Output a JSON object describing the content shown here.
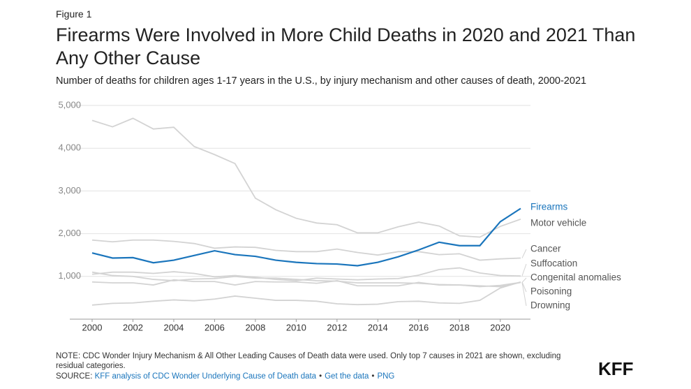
{
  "chart_data": {
    "type": "line",
    "figure_label": "Figure 1",
    "title": "Firearms Were Involved in More Child Deaths in 2020 and 2021 Than Any Other Cause",
    "subtitle": "Number of deaths for children ages 1-17 years in the U.S., by injury mechanism and other causes of death, 2000-2021",
    "x": [
      2000,
      2001,
      2002,
      2003,
      2004,
      2005,
      2006,
      2007,
      2008,
      2009,
      2010,
      2011,
      2012,
      2013,
      2014,
      2015,
      2016,
      2017,
      2018,
      2019,
      2020,
      2021
    ],
    "xlim": [
      2000,
      2021
    ],
    "xticks": [
      2000,
      2002,
      2004,
      2006,
      2008,
      2010,
      2012,
      2014,
      2016,
      2018,
      2020
    ],
    "ylim": [
      0,
      5000
    ],
    "yticks": [
      {
        "value": 1000,
        "label": "1,000"
      },
      {
        "value": 2000,
        "label": "2,000"
      },
      {
        "value": 3000,
        "label": "3,000"
      },
      {
        "value": 4000,
        "label": "4,000"
      },
      {
        "value": 5000,
        "label": "5,000"
      }
    ],
    "grid": true,
    "series": [
      {
        "name": "Firearms",
        "color": "#1a75bc",
        "values": [
          1550,
          1430,
          1440,
          1320,
          1380,
          1490,
          1600,
          1510,
          1470,
          1380,
          1330,
          1300,
          1290,
          1250,
          1330,
          1460,
          1620,
          1800,
          1720,
          1720,
          2280,
          2590
        ]
      },
      {
        "name": "Motor vehicle",
        "color": "#d3d3d3",
        "values": [
          4650,
          4500,
          4700,
          4450,
          4490,
          4040,
          3850,
          3640,
          2830,
          2560,
          2360,
          2250,
          2210,
          2020,
          2020,
          2160,
          2270,
          2180,
          1950,
          1920,
          2170,
          2340
        ]
      },
      {
        "name": "Cancer",
        "color": "#d3d3d3",
        "values": [
          1850,
          1810,
          1850,
          1850,
          1820,
          1770,
          1660,
          1690,
          1680,
          1610,
          1580,
          1580,
          1640,
          1560,
          1500,
          1580,
          1580,
          1510,
          1530,
          1380,
          1410,
          1430
        ]
      },
      {
        "name": "Suffocation",
        "color": "#d3d3d3",
        "values": [
          1050,
          1100,
          1100,
          1070,
          1110,
          1070,
          990,
          1020,
          980,
          930,
          900,
          960,
          940,
          920,
          940,
          950,
          1030,
          1160,
          1200,
          1080,
          1020,
          1010
        ]
      },
      {
        "name": "Congenital anomalies",
        "color": "#d3d3d3",
        "values": [
          1100,
          1020,
          1000,
          930,
          900,
          940,
          950,
          1000,
          960,
          960,
          930,
          900,
          890,
          850,
          850,
          850,
          840,
          810,
          800,
          760,
          790,
          860
        ]
      },
      {
        "name": "Poisoning",
        "color": "#d3d3d3",
        "values": [
          330,
          370,
          380,
          420,
          450,
          430,
          470,
          540,
          490,
          440,
          440,
          420,
          360,
          340,
          350,
          410,
          420,
          380,
          370,
          440,
          730,
          870
        ]
      },
      {
        "name": "Drowning",
        "color": "#d3d3d3",
        "values": [
          870,
          850,
          850,
          800,
          920,
          880,
          880,
          800,
          880,
          870,
          870,
          840,
          900,
          780,
          780,
          780,
          860,
          800,
          800,
          780,
          760,
          860
        ]
      }
    ],
    "note": "NOTE: CDC Wonder Injury Mechanism & All Other Leading Causes of Death data were used. Only top 7 causes in 2021 are shown, excluding residual categories.",
    "source": {
      "label": "SOURCE:",
      "links": [
        "KFF analysis of CDC Wonder Underlying Cause of Death data",
        "Get the data",
        "PNG"
      ],
      "separator": "•"
    },
    "logo": "KFF"
  }
}
